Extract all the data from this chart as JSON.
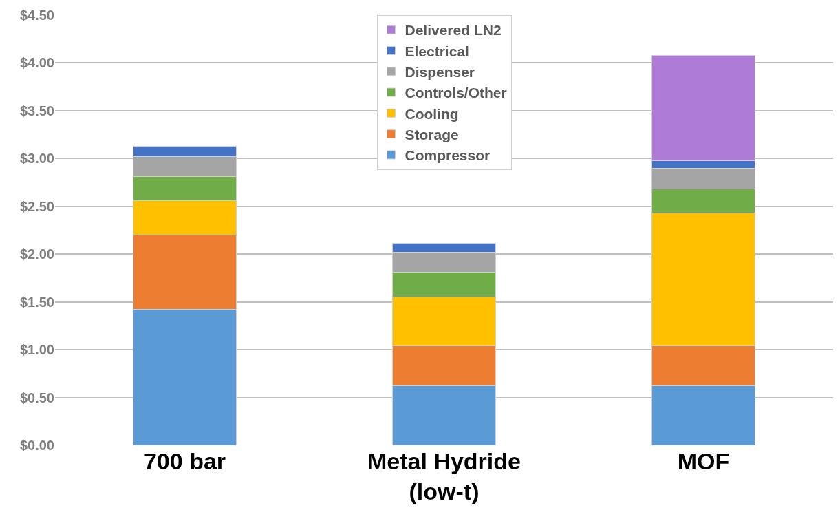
{
  "chart_data": {
    "type": "bar",
    "stacked": true,
    "categories": [
      "700 bar",
      "Metal Hydride\n(low-t)",
      "MOF"
    ],
    "series": [
      {
        "name": "Compressor",
        "color": "#5b9bd5",
        "values": [
          1.42,
          0.62,
          0.62
        ]
      },
      {
        "name": "Storage",
        "color": "#ed7d31",
        "values": [
          0.78,
          0.42,
          0.42
        ]
      },
      {
        "name": "Cooling",
        "color": "#ffc000",
        "values": [
          0.36,
          0.51,
          1.39
        ]
      },
      {
        "name": "Controls/Other",
        "color": "#70ad47",
        "values": [
          0.25,
          0.26,
          0.25
        ]
      },
      {
        "name": "Dispenser",
        "color": "#a5a5a5",
        "values": [
          0.21,
          0.21,
          0.22
        ]
      },
      {
        "name": "Electrical",
        "color": "#4472c4",
        "values": [
          0.11,
          0.09,
          0.08
        ]
      },
      {
        "name": "Delivered LN2",
        "color": "#ae7bd6",
        "values": [
          null,
          null,
          1.1
        ]
      }
    ],
    "ylim": [
      0,
      4.5
    ],
    "yticks": [
      {
        "value": 0,
        "label": "$0.00"
      },
      {
        "value": 0.5,
        "label": "$0.50"
      },
      {
        "value": 1,
        "label": "$1.00"
      },
      {
        "value": 1.5,
        "label": "$1.50"
      },
      {
        "value": 2,
        "label": "$2.00"
      },
      {
        "value": 2.5,
        "label": "$2.50"
      },
      {
        "value": 3,
        "label": "$3.00"
      },
      {
        "value": 3.5,
        "label": "$3.50"
      },
      {
        "value": 4,
        "label": "$4.00"
      },
      {
        "value": 4.5,
        "label": "$4.50"
      }
    ],
    "grid": "y",
    "legend": "top"
  }
}
